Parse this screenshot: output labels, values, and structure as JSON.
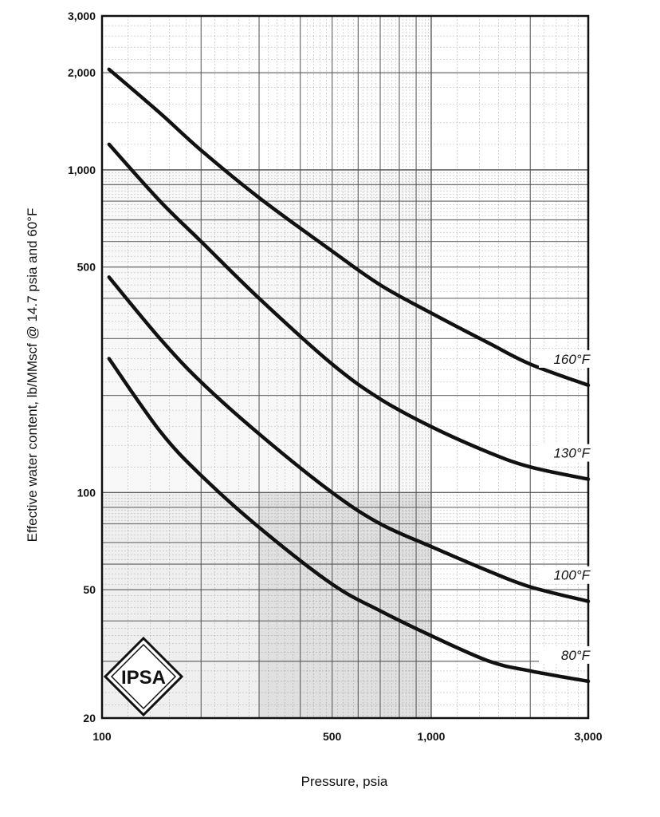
{
  "chart_data": {
    "type": "line",
    "xlabel": "Pressure, psia",
    "ylabel": "Effective water content, lb/MMscf @ 14.7 psia and 60°F",
    "x_scale": "log",
    "y_scale": "log",
    "xlim": [
      100,
      3000
    ],
    "ylim": [
      20,
      3000
    ],
    "x_ticks": [
      {
        "value": 100,
        "label": "100"
      },
      {
        "value": 500,
        "label": "500"
      },
      {
        "value": 1000,
        "label": "1,000"
      },
      {
        "value": 3000,
        "label": "3,000"
      }
    ],
    "y_ticks": [
      {
        "value": 3000,
        "label": "3,000"
      },
      {
        "value": 2000,
        "label": "2,000"
      },
      {
        "value": 1000,
        "label": "1,000"
      },
      {
        "value": 500,
        "label": "500"
      },
      {
        "value": 100,
        "label": "100"
      },
      {
        "value": 50,
        "label": "50"
      },
      {
        "value": 20,
        "label": "20"
      }
    ],
    "grid": true,
    "x": [
      105,
      150,
      200,
      300,
      500,
      700,
      1000,
      1500,
      2000,
      3000
    ],
    "series": [
      {
        "label": "160°F",
        "values": [
          2050,
          1500,
          1150,
          820,
          560,
          440,
          360,
          290,
          250,
          215
        ]
      },
      {
        "label": "130°F",
        "values": [
          1200,
          800,
          600,
          400,
          250,
          195,
          160,
          133,
          120,
          110
        ]
      },
      {
        "label": "100°F",
        "values": [
          465,
          300,
          220,
          152,
          100,
          80,
          68,
          57,
          51,
          46
        ]
      },
      {
        "label": "80°F",
        "values": [
          260,
          155,
          113,
          78,
          52,
          43,
          36,
          30,
          28,
          26
        ]
      }
    ],
    "colors": {
      "line": "#111111",
      "grid": "#555555",
      "shade": "#9a9a9a"
    }
  },
  "logo": {
    "text": "IPSA",
    "icon": "diamond-logo-icon"
  }
}
